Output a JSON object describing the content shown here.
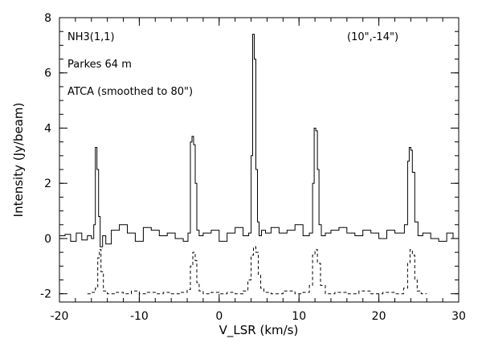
{
  "chart_data": {
    "type": "line",
    "xlabel": "V_LSR (km/s)",
    "ylabel": "Intensity (Jy/beam)",
    "xlim": [
      -20,
      30
    ],
    "ylim": [
      -2.3,
      8
    ],
    "xticks": [
      -20,
      -10,
      0,
      10,
      20,
      30
    ],
    "yticks": [
      -2,
      0,
      2,
      4,
      6,
      8
    ],
    "xtick_labels": [
      "-20",
      "-10",
      "0",
      "10",
      "20",
      "30"
    ],
    "ytick_labels": [
      "-2",
      "0",
      "2",
      "4",
      "6",
      "8"
    ],
    "annotations": {
      "line": "NH3(1,1)",
      "position": "(10\",-14\")",
      "parkes": "Parkes 64 m",
      "atca": "ATCA (smoothed to 80\")"
    },
    "series": [
      {
        "name": "Parkes 64 m",
        "style": "solid",
        "x": [
          -20.0,
          -19.3,
          -18.6,
          -17.9,
          -17.2,
          -16.5,
          -16.0,
          -15.7,
          -15.5,
          -15.3,
          -15.1,
          -14.9,
          -14.6,
          -14.2,
          -13.5,
          -12.5,
          -11.5,
          -10.5,
          -9.5,
          -8.5,
          -7.5,
          -6.5,
          -5.5,
          -4.5,
          -3.9,
          -3.6,
          -3.4,
          -3.2,
          -3.0,
          -2.8,
          -2.5,
          -2.0,
          -1.0,
          0.0,
          1.0,
          2.0,
          3.0,
          3.7,
          4.0,
          4.2,
          4.4,
          4.6,
          4.8,
          5.0,
          5.3,
          5.8,
          6.5,
          7.5,
          8.5,
          9.5,
          10.5,
          11.3,
          11.7,
          11.9,
          12.1,
          12.3,
          12.5,
          12.8,
          13.3,
          14.0,
          15.0,
          16.0,
          17.0,
          18.0,
          19.0,
          20.0,
          21.0,
          22.0,
          23.2,
          23.6,
          23.8,
          24.0,
          24.2,
          24.5,
          24.9,
          25.5,
          26.5,
          27.5,
          28.5,
          29.3,
          30.0
        ],
        "y": [
          0.1,
          0.15,
          -0.1,
          0.2,
          -0.05,
          0.1,
          0.0,
          0.5,
          3.3,
          2.5,
          0.8,
          -0.3,
          0.1,
          -0.2,
          0.3,
          0.5,
          0.2,
          -0.1,
          0.4,
          0.3,
          0.1,
          0.2,
          0.0,
          -0.1,
          0.2,
          3.5,
          3.7,
          3.4,
          2.0,
          0.3,
          0.1,
          0.2,
          0.3,
          -0.1,
          0.2,
          0.4,
          0.1,
          0.2,
          3.0,
          7.4,
          6.5,
          2.5,
          0.6,
          0.1,
          0.3,
          0.2,
          0.4,
          0.2,
          0.3,
          0.5,
          0.1,
          0.2,
          2.0,
          4.0,
          3.9,
          2.5,
          0.5,
          0.1,
          0.2,
          0.3,
          0.4,
          0.2,
          0.1,
          0.3,
          0.2,
          0.0,
          0.3,
          0.2,
          0.5,
          2.8,
          3.3,
          3.2,
          2.4,
          0.6,
          0.1,
          0.2,
          0.0,
          -0.1,
          0.2,
          0.0,
          0.1
        ]
      },
      {
        "name": "ATCA (smoothed to 80\")",
        "style": "dashed",
        "x": [
          -16.5,
          -16.0,
          -15.5,
          -15.2,
          -15.0,
          -14.8,
          -14.5,
          -14.0,
          -13.0,
          -12.0,
          -11.0,
          -10.0,
          -9.0,
          -8.0,
          -7.0,
          -6.0,
          -5.0,
          -4.0,
          -3.6,
          -3.3,
          -3.0,
          -2.8,
          -2.5,
          -2.0,
          -1.0,
          0.0,
          1.0,
          2.0,
          3.0,
          3.6,
          4.0,
          4.3,
          4.6,
          4.9,
          5.2,
          5.6,
          6.5,
          8.0,
          9.5,
          10.5,
          11.3,
          11.7,
          12.0,
          12.3,
          12.7,
          13.3,
          14.5,
          16.0,
          17.5,
          19.0,
          20.5,
          22.0,
          23.1,
          23.6,
          23.9,
          24.2,
          24.5,
          24.8,
          25.3,
          26.0
        ],
        "y": [
          -2.0,
          -1.95,
          -1.8,
          -0.7,
          -0.4,
          -1.2,
          -1.9,
          -2.0,
          -1.95,
          -2.0,
          -1.9,
          -2.0,
          -1.95,
          -2.0,
          -1.95,
          -2.0,
          -1.95,
          -1.85,
          -1.0,
          -0.5,
          -0.8,
          -1.6,
          -1.9,
          -2.0,
          -1.95,
          -2.0,
          -1.95,
          -2.0,
          -1.9,
          -1.5,
          -0.6,
          -0.3,
          -0.5,
          -1.3,
          -1.8,
          -1.95,
          -2.0,
          -1.9,
          -2.0,
          -1.95,
          -1.7,
          -0.6,
          -0.4,
          -0.9,
          -1.7,
          -2.0,
          -1.95,
          -2.0,
          -1.9,
          -2.0,
          -1.95,
          -2.0,
          -1.8,
          -0.9,
          -0.4,
          -0.6,
          -1.5,
          -1.9,
          -2.0,
          -2.0
        ]
      }
    ]
  }
}
